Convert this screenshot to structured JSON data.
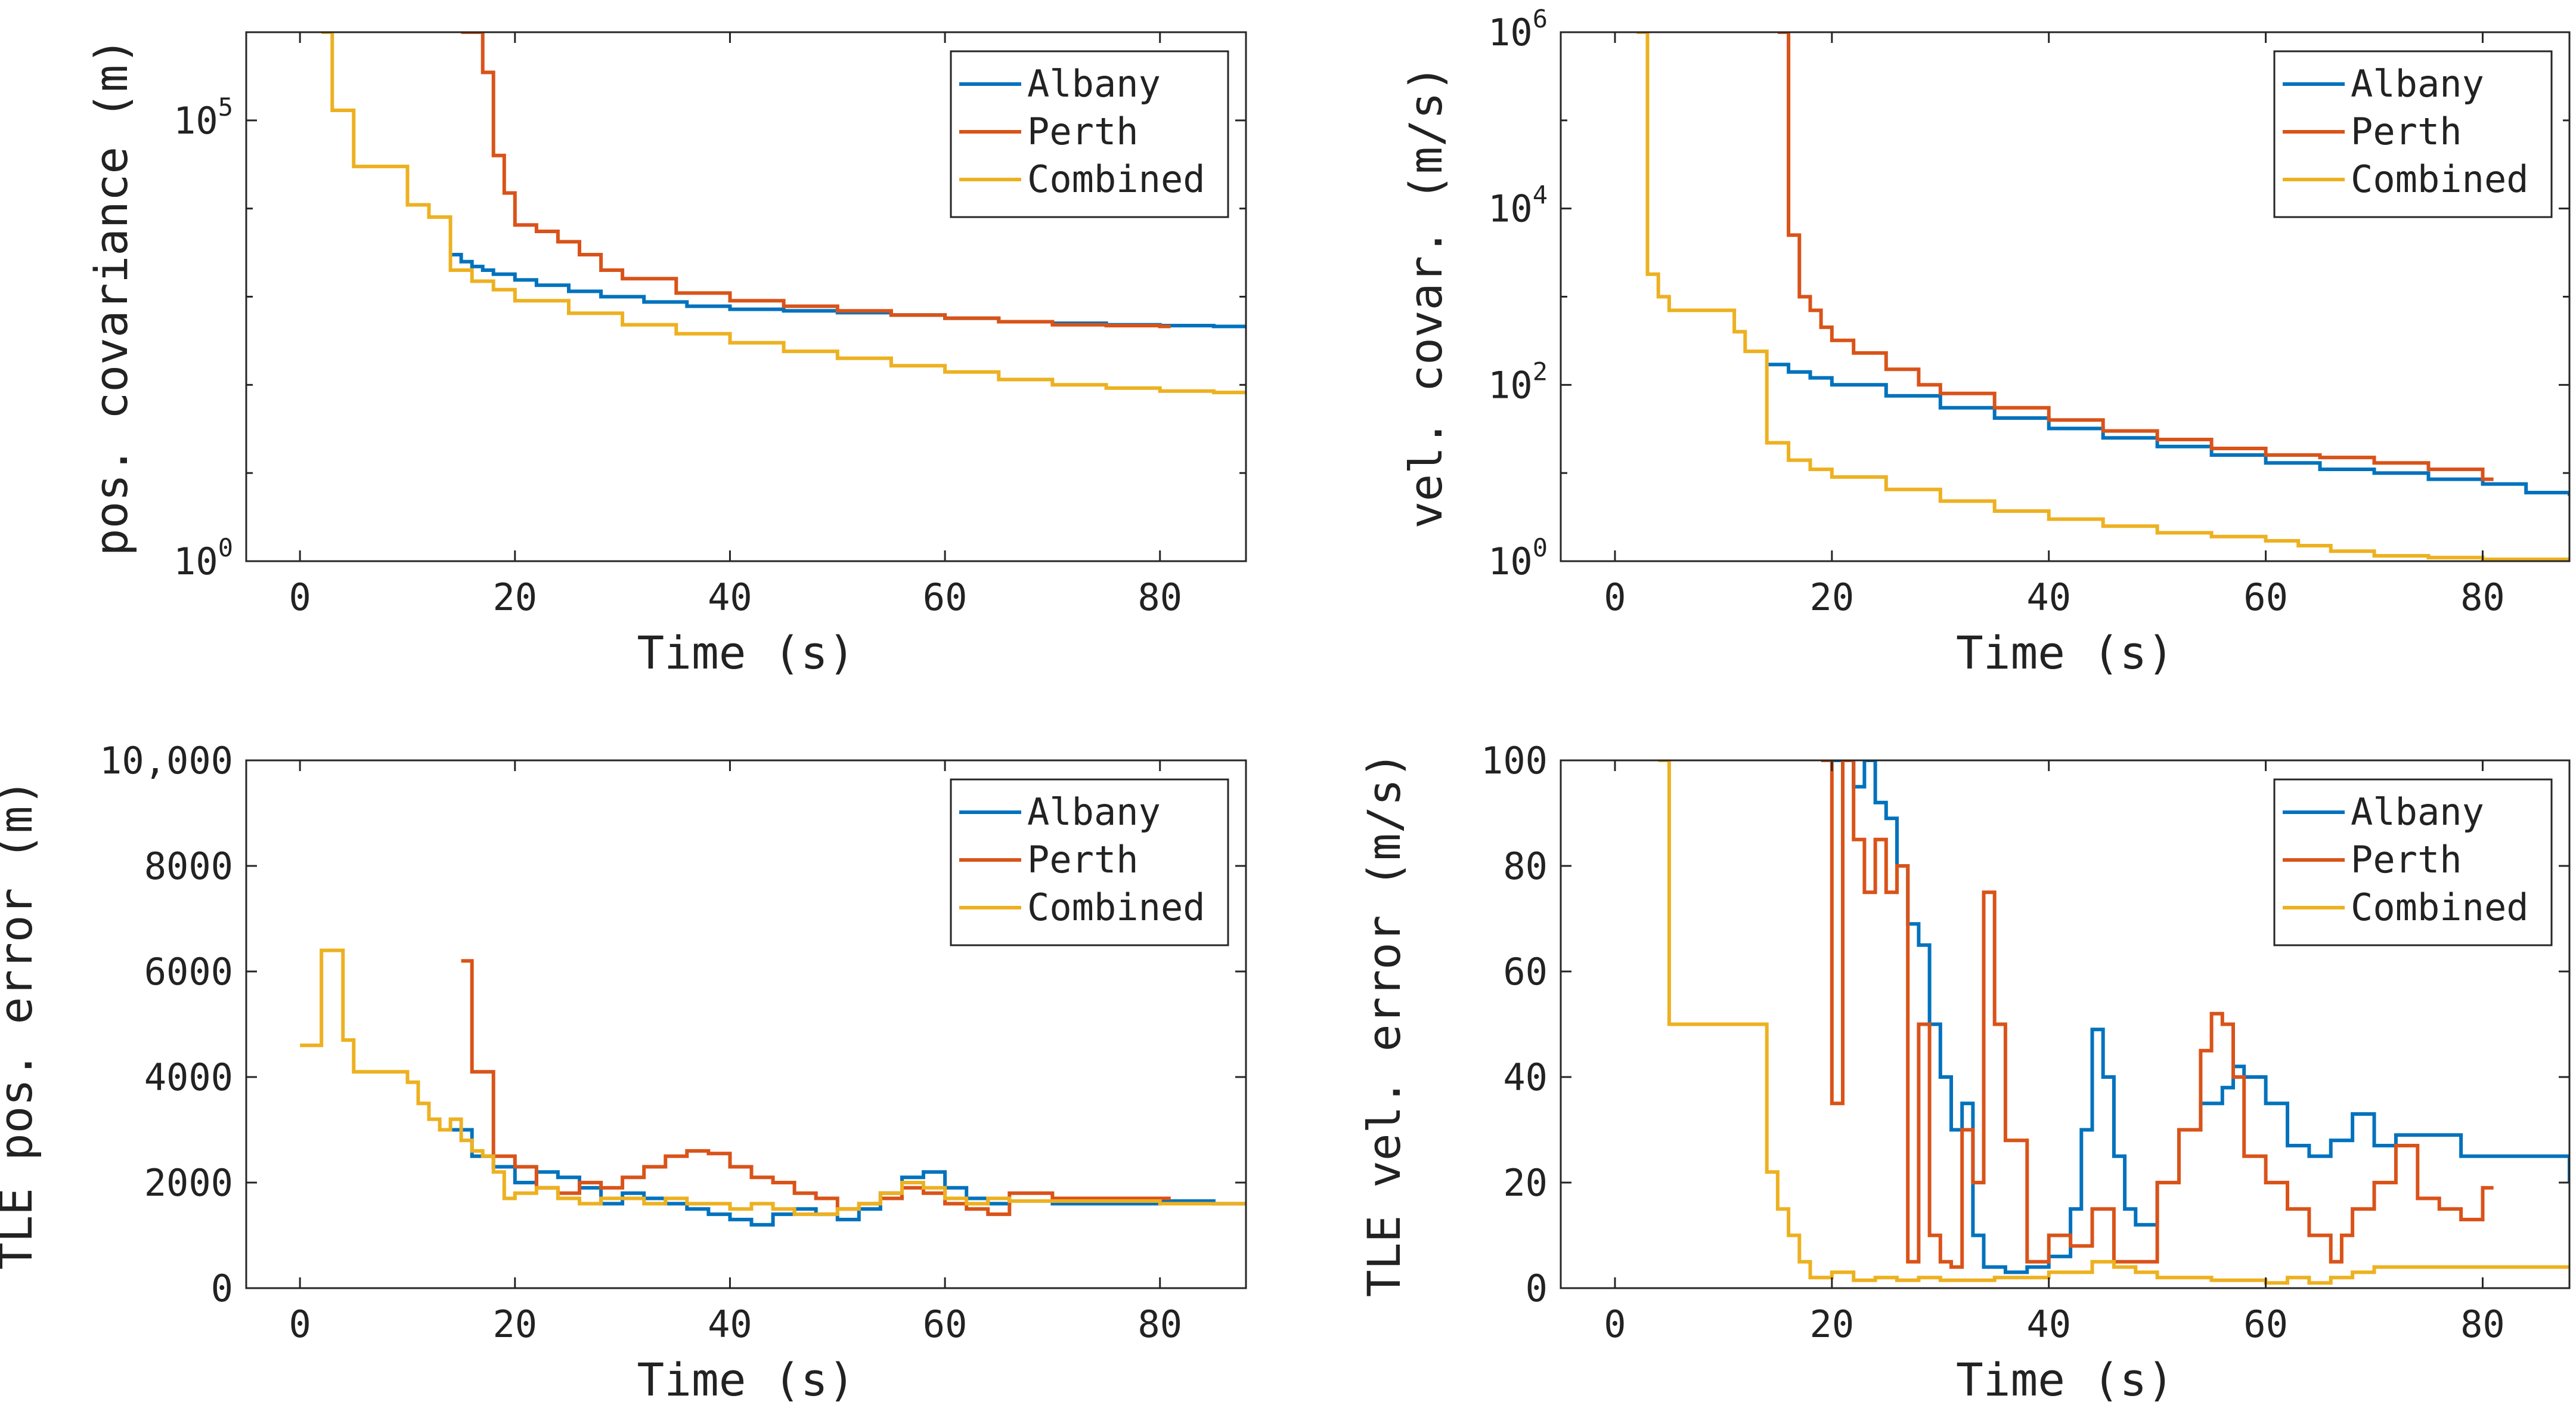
{
  "colors": {
    "albany": "#0072BD",
    "perth": "#D95319",
    "combined": "#EDB120",
    "axis": "#262626"
  },
  "chart_data": [
    {
      "id": "pos-covariance",
      "type": "line",
      "step": true,
      "yscale": "log",
      "xlabel": "Time (s)",
      "ylabel": "pos. covariance (m)",
      "xlim": [
        -5,
        88
      ],
      "ylim": [
        1,
        1000000
      ],
      "xticks": [
        0,
        20,
        40,
        60,
        80
      ],
      "xtick_labels": [
        "0",
        "20",
        "40",
        "60",
        "80"
      ],
      "yticks": [
        {
          "base": "10",
          "exp": "0",
          "value": 1
        },
        {
          "base": "10",
          "exp": "5",
          "value": 100000
        }
      ],
      "legend": [
        "Albany",
        "Perth",
        "Combined"
      ],
      "legend_position": "top-right",
      "series": [
        {
          "name": "Albany",
          "color_key": "albany",
          "x": [
            14,
            15,
            16,
            17,
            18,
            20,
            22,
            25,
            28,
            32,
            36,
            40,
            45,
            50,
            55,
            60,
            65,
            70,
            75,
            80,
            85,
            88
          ],
          "y": [
            3000,
            2500,
            2200,
            2000,
            1800,
            1550,
            1350,
            1150,
            1000,
            870,
            780,
            720,
            690,
            660,
            620,
            570,
            520,
            500,
            480,
            470,
            460,
            450
          ]
        },
        {
          "name": "Perth",
          "color_key": "perth",
          "x": [
            15,
            17,
            18,
            19,
            20,
            22,
            24,
            26,
            28,
            30,
            35,
            40,
            45,
            50,
            55,
            60,
            65,
            70,
            75,
            80,
            81
          ],
          "y": [
            1000000,
            350000,
            40000,
            15000,
            6500,
            5500,
            4200,
            3000,
            2000,
            1600,
            1100,
            900,
            780,
            690,
            620,
            570,
            520,
            480,
            470,
            460,
            460
          ]
        },
        {
          "name": "Combined",
          "color_key": "combined",
          "x": [
            2,
            3,
            5,
            10,
            12,
            14,
            16,
            18,
            20,
            25,
            30,
            35,
            40,
            45,
            50,
            55,
            60,
            65,
            70,
            75,
            80,
            85,
            88
          ],
          "y": [
            1000000,
            130000,
            30000,
            11000,
            8000,
            2000,
            1500,
            1200,
            900,
            650,
            480,
            380,
            300,
            240,
            200,
            165,
            140,
            115,
            100,
            92,
            85,
            82,
            80
          ]
        }
      ]
    },
    {
      "id": "vel-covariance",
      "type": "line",
      "step": true,
      "yscale": "log",
      "xlabel": "Time (s)",
      "ylabel": "vel. covar. (m/s)",
      "xlim": [
        -5,
        88
      ],
      "ylim": [
        1,
        1000000
      ],
      "xticks": [
        0,
        20,
        40,
        60,
        80
      ],
      "xtick_labels": [
        "0",
        "20",
        "40",
        "60",
        "80"
      ],
      "yticks": [
        {
          "base": "10",
          "exp": "0",
          "value": 1
        },
        {
          "base": "10",
          "exp": "2",
          "value": 100
        },
        {
          "base": "10",
          "exp": "4",
          "value": 10000
        },
        {
          "base": "10",
          "exp": "6",
          "value": 1000000
        }
      ],
      "legend": [
        "Albany",
        "Perth",
        "Combined"
      ],
      "legend_position": "top-right",
      "series": [
        {
          "name": "Albany",
          "color_key": "albany",
          "x": [
            14,
            16,
            18,
            20,
            25,
            30,
            35,
            40,
            45,
            50,
            55,
            60,
            65,
            70,
            75,
            80,
            84,
            88
          ],
          "y": [
            170,
            140,
            120,
            100,
            75,
            55,
            42,
            32,
            25,
            20,
            16,
            13,
            11,
            10,
            8.5,
            7.5,
            6,
            5.5
          ]
        },
        {
          "name": "Perth",
          "color_key": "perth",
          "x": [
            15,
            16,
            17,
            18,
            19,
            20,
            22,
            25,
            28,
            30,
            35,
            40,
            45,
            50,
            55,
            60,
            65,
            70,
            75,
            80,
            81
          ],
          "y": [
            1000000,
            5000,
            1000,
            700,
            450,
            320,
            230,
            150,
            100,
            80,
            55,
            40,
            30,
            24,
            19,
            16,
            15,
            13,
            11,
            8.5,
            8.5
          ]
        },
        {
          "name": "Combined",
          "color_key": "combined",
          "x": [
            2,
            3,
            4,
            5,
            11,
            12,
            14,
            16,
            18,
            20,
            25,
            30,
            35,
            40,
            45,
            50,
            55,
            60,
            63,
            66,
            70,
            75,
            80,
            88
          ],
          "y": [
            1000000,
            1800,
            1000,
            700,
            400,
            240,
            22,
            14,
            11,
            9,
            6.5,
            4.8,
            3.7,
            3,
            2.5,
            2.1,
            1.9,
            1.7,
            1.5,
            1.3,
            1.15,
            1.1,
            1.05,
            1.05
          ]
        }
      ]
    },
    {
      "id": "tle-pos-error",
      "type": "line",
      "step": true,
      "yscale": "linear",
      "xlabel": "Time (s)",
      "ylabel": "TLE pos. error (m)",
      "xlim": [
        -5,
        88
      ],
      "ylim": [
        0,
        10000
      ],
      "xticks": [
        0,
        20,
        40,
        60,
        80
      ],
      "xtick_labels": [
        "0",
        "20",
        "40",
        "60",
        "80"
      ],
      "yticks": [
        {
          "label": "0",
          "value": 0
        },
        {
          "label": "2000",
          "value": 2000
        },
        {
          "label": "4000",
          "value": 4000
        },
        {
          "label": "6000",
          "value": 6000
        },
        {
          "label": "8000",
          "value": 8000
        },
        {
          "label": "10,000",
          "value": 10000
        }
      ],
      "legend": [
        "Albany",
        "Perth",
        "Combined"
      ],
      "legend_position": "top-right",
      "series": [
        {
          "name": "Albany",
          "color_key": "albany",
          "x": [
            14,
            16,
            18,
            20,
            22,
            24,
            26,
            28,
            30,
            32,
            34,
            36,
            38,
            40,
            42,
            44,
            46,
            48,
            50,
            52,
            54,
            56,
            58,
            60,
            62,
            64,
            66,
            70,
            75,
            80,
            85,
            88
          ],
          "y": [
            3000,
            2500,
            2300,
            2000,
            2200,
            2100,
            1900,
            1600,
            1800,
            1700,
            1600,
            1500,
            1400,
            1300,
            1200,
            1400,
            1500,
            1400,
            1300,
            1500,
            1800,
            2100,
            2200,
            1900,
            1700,
            1600,
            1650,
            1600,
            1600,
            1650,
            1600,
            1600
          ]
        },
        {
          "name": "Perth",
          "color_key": "perth",
          "x": [
            15,
            16,
            18,
            20,
            22,
            24,
            26,
            28,
            30,
            32,
            34,
            36,
            38,
            40,
            42,
            44,
            46,
            48,
            50,
            52,
            54,
            56,
            58,
            60,
            62,
            64,
            66,
            70,
            75,
            81
          ],
          "y": [
            6200,
            4100,
            2500,
            2300,
            1900,
            1800,
            2000,
            1900,
            2100,
            2300,
            2500,
            2600,
            2550,
            2300,
            2100,
            2000,
            1800,
            1700,
            1500,
            1600,
            1700,
            1900,
            1800,
            1600,
            1500,
            1400,
            1800,
            1700,
            1700,
            1700
          ]
        },
        {
          "name": "Combined",
          "color_key": "combined",
          "x": [
            0,
            2,
            4,
            5,
            10,
            11,
            12,
            13,
            14,
            15,
            16,
            17,
            18,
            19,
            20,
            22,
            24,
            26,
            28,
            30,
            32,
            34,
            36,
            38,
            40,
            42,
            44,
            46,
            48,
            50,
            52,
            54,
            56,
            58,
            60,
            62,
            64,
            66,
            70,
            75,
            80,
            85,
            88
          ],
          "y": [
            4600,
            6400,
            4700,
            4100,
            3900,
            3500,
            3200,
            3000,
            3200,
            2800,
            2600,
            2500,
            2200,
            1700,
            1800,
            1900,
            1700,
            1600,
            1700,
            1700,
            1600,
            1700,
            1600,
            1600,
            1500,
            1600,
            1500,
            1400,
            1400,
            1500,
            1600,
            1800,
            2000,
            1900,
            1700,
            1600,
            1700,
            1650,
            1650,
            1650,
            1600,
            1600,
            1600
          ]
        }
      ]
    },
    {
      "id": "tle-vel-error",
      "type": "line",
      "step": true,
      "yscale": "linear",
      "xlabel": "Time (s)",
      "ylabel": "TLE vel. error (m/s)",
      "xlim": [
        -5,
        88
      ],
      "ylim": [
        0,
        100
      ],
      "xticks": [
        0,
        20,
        40,
        60,
        80
      ],
      "xtick_labels": [
        "0",
        "20",
        "40",
        "60",
        "80"
      ],
      "yticks": [
        {
          "label": "0",
          "value": 0
        },
        {
          "label": "20",
          "value": 20
        },
        {
          "label": "40",
          "value": 40
        },
        {
          "label": "60",
          "value": 60
        },
        {
          "label": "80",
          "value": 80
        },
        {
          "label": "100",
          "value": 100
        }
      ],
      "legend": [
        "Albany",
        "Perth",
        "Combined"
      ],
      "legend_position": "top-right",
      "series": [
        {
          "name": "Albany",
          "color_key": "albany",
          "x": [
            20,
            22,
            23,
            24,
            25,
            26,
            27,
            28,
            29,
            30,
            31,
            32,
            33,
            34,
            36,
            38,
            40,
            42,
            43,
            44,
            45,
            46,
            47,
            48,
            50,
            52,
            54,
            56,
            57,
            58,
            60,
            62,
            64,
            66,
            68,
            70,
            72,
            74,
            78,
            82,
            86,
            88
          ],
          "y": [
            100,
            95,
            100,
            92,
            89,
            80,
            69,
            65,
            50,
            40,
            30,
            35,
            10,
            4,
            3,
            4,
            6,
            15,
            30,
            49,
            40,
            25,
            15,
            12,
            20,
            30,
            35,
            38,
            42,
            40,
            35,
            27,
            25,
            28,
            33,
            27,
            29,
            29,
            25,
            25,
            25,
            20
          ]
        },
        {
          "name": "Perth",
          "color_key": "perth",
          "x": [
            19,
            20,
            21,
            22,
            23,
            24,
            25,
            26,
            27,
            28,
            29,
            30,
            31,
            32,
            33,
            34,
            35,
            36,
            38,
            40,
            42,
            44,
            46,
            48,
            50,
            52,
            54,
            55,
            56,
            57,
            58,
            60,
            62,
            64,
            66,
            67,
            68,
            70,
            72,
            74,
            76,
            78,
            80,
            81
          ],
          "y": [
            100,
            35,
            100,
            85,
            75,
            85,
            75,
            80,
            5,
            50,
            10,
            5,
            4,
            30,
            20,
            75,
            50,
            28,
            5,
            10,
            8,
            15,
            5,
            5,
            20,
            30,
            45,
            52,
            50,
            40,
            25,
            20,
            15,
            10,
            5,
            10,
            15,
            20,
            27,
            17,
            15,
            13,
            19,
            19
          ]
        },
        {
          "name": "Combined",
          "color_key": "combined",
          "x": [
            4,
            5,
            14,
            15,
            16,
            17,
            18,
            20,
            22,
            24,
            26,
            28,
            30,
            35,
            40,
            44,
            46,
            48,
            50,
            55,
            60,
            62,
            64,
            66,
            68,
            70,
            75,
            80,
            85,
            88
          ],
          "y": [
            100,
            50,
            22,
            15,
            10,
            5,
            2,
            3,
            1.5,
            2,
            1.5,
            2,
            1.5,
            2,
            3,
            5,
            4,
            3,
            2,
            1.5,
            1,
            2,
            1,
            2,
            3,
            4,
            4,
            4,
            4,
            4
          ]
        }
      ]
    }
  ]
}
